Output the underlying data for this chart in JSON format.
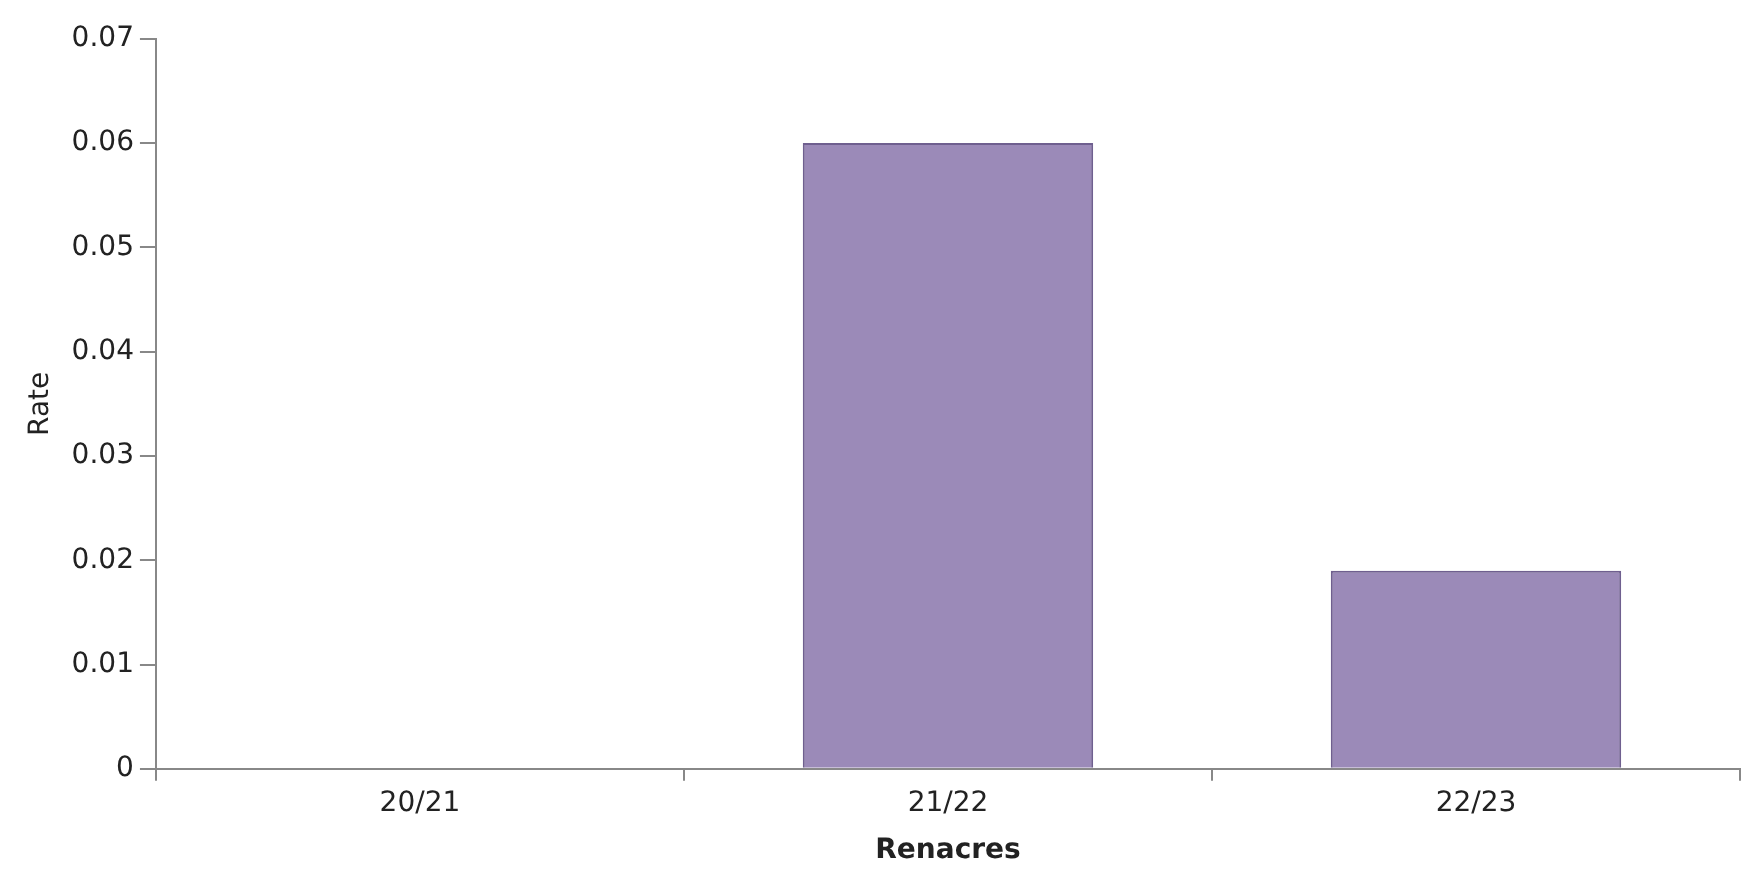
{
  "chart_data": {
    "type": "bar",
    "xlabel": "Renacres",
    "ylabel": "Rate",
    "categories": [
      "20/21",
      "21/22",
      "22/23"
    ],
    "values": [
      0,
      0.06,
      0.019
    ],
    "color": "#9b8ab8",
    "ylim": [
      0,
      0.07
    ],
    "yticks": [
      0,
      0.01,
      0.02,
      0.03,
      0.04,
      0.05,
      0.06,
      0.07
    ],
    "grid": false,
    "legend": false
  }
}
